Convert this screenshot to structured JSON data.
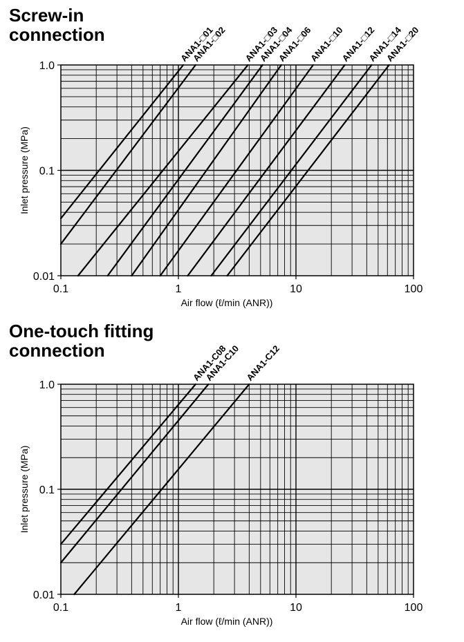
{
  "chart_data": [
    {
      "type": "line",
      "title_lines": [
        "Screw-in",
        "connection"
      ],
      "xlabel": "Air flow (ℓ/min (ANR))",
      "ylabel": "Inlet pressure (MPa)",
      "xscale": "log",
      "yscale": "log",
      "xlim": [
        0.1,
        100
      ],
      "ylim": [
        0.01,
        1.0
      ],
      "x_tick_labels": [
        "0.1",
        "1",
        "10",
        "100"
      ],
      "y_tick_labels": [
        "0.01",
        "0.1",
        "1.0"
      ],
      "grid": true,
      "background": "#e6e6e6",
      "series": [
        {
          "name": "ANA1-□01",
          "points": [
            [
              0.1,
              0.035
            ],
            [
              1.1,
              1.0
            ]
          ]
        },
        {
          "name": "ANA1-□02",
          "points": [
            [
              0.1,
              0.02
            ],
            [
              1.4,
              1.0
            ]
          ]
        },
        {
          "name": "ANA1-□03",
          "points": [
            [
              0.14,
              0.01
            ],
            [
              3.9,
              1.0
            ]
          ]
        },
        {
          "name": "ANA1-□04",
          "points": [
            [
              0.25,
              0.01
            ],
            [
              5.2,
              1.0
            ]
          ]
        },
        {
          "name": "ANA1-□06",
          "points": [
            [
              0.4,
              0.01
            ],
            [
              7.5,
              1.0
            ]
          ]
        },
        {
          "name": "ANA1-□10",
          "points": [
            [
              0.7,
              0.01
            ],
            [
              14.0,
              1.0
            ]
          ]
        },
        {
          "name": "ANA1-□12",
          "points": [
            [
              1.2,
              0.01
            ],
            [
              26.0,
              1.0
            ]
          ]
        },
        {
          "name": "ANA1-□14",
          "points": [
            [
              1.9,
              0.01
            ],
            [
              44.0,
              1.0
            ]
          ]
        },
        {
          "name": "ANA1-□20",
          "points": [
            [
              2.6,
              0.01
            ],
            [
              62.0,
              1.0
            ]
          ]
        }
      ]
    },
    {
      "type": "line",
      "title_lines": [
        "One-touch fitting",
        "connection"
      ],
      "xlabel": "Air flow (ℓ/min (ANR))",
      "ylabel": "Inlet pressure (MPa)",
      "xscale": "log",
      "yscale": "log",
      "xlim": [
        0.1,
        100
      ],
      "ylim": [
        0.01,
        1.0
      ],
      "x_tick_labels": [
        "0.1",
        "1",
        "10",
        "100"
      ],
      "y_tick_labels": [
        "0.01",
        "0.1",
        "1.0"
      ],
      "grid": true,
      "background": "#e6e6e6",
      "series": [
        {
          "name": "ANA1-C08",
          "points": [
            [
              0.1,
              0.03
            ],
            [
              1.4,
              1.0
            ]
          ]
        },
        {
          "name": "ANA1-C10",
          "points": [
            [
              0.1,
              0.02
            ],
            [
              1.8,
              1.0
            ]
          ]
        },
        {
          "name": "ANA1-C12",
          "points": [
            [
              0.13,
              0.01
            ],
            [
              4.0,
              1.0
            ]
          ]
        }
      ]
    }
  ]
}
